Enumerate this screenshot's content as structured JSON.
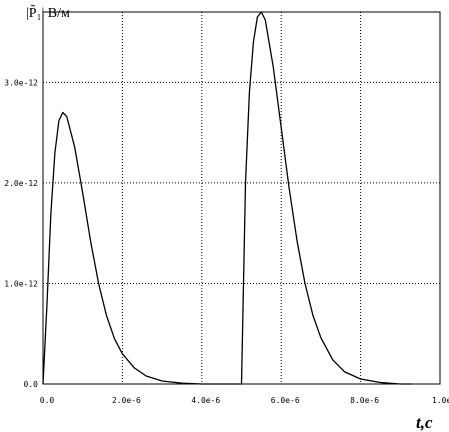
{
  "chart_data": {
    "type": "line",
    "ylabel": "|P̃₁| В/м",
    "xlabel": "t,c",
    "xlim": [
      0,
      1e-05
    ],
    "ylim": [
      0,
      3.7e-12
    ],
    "grid": true,
    "x_ticks": [
      {
        "value": 0,
        "label": "0.0"
      },
      {
        "value": 2e-06,
        "label": "2.0e-6"
      },
      {
        "value": 4e-06,
        "label": "4.0e-6"
      },
      {
        "value": 6e-06,
        "label": "6.0e-6"
      },
      {
        "value": 8e-06,
        "label": "8.0e-6"
      },
      {
        "value": 1e-05,
        "label": "1.0e-"
      }
    ],
    "y_ticks": [
      {
        "value": 0,
        "label": "0.0"
      },
      {
        "value": 1e-12,
        "label": "1.0e-12"
      },
      {
        "value": 2e-12,
        "label": "2.0e-12"
      },
      {
        "value": 3e-12,
        "label": "3.0e-12"
      }
    ],
    "series": [
      {
        "color": "#000000",
        "points": [
          [
            0.0,
            0.0
          ],
          [
            1e-07,
            8e-13
          ],
          [
            2e-07,
            1.7e-12
          ],
          [
            3e-07,
            2.3e-12
          ],
          [
            4e-07,
            2.62e-12
          ],
          [
            5e-07,
            2.7e-12
          ],
          [
            6e-07,
            2.66e-12
          ],
          [
            8e-07,
            2.35e-12
          ],
          [
            1e-06,
            1.9e-12
          ],
          [
            1.2e-06,
            1.42e-12
          ],
          [
            1.4e-06,
            1e-12
          ],
          [
            1.6e-06,
            6.8e-13
          ],
          [
            1.8e-06,
            4.5e-13
          ],
          [
            2e-06,
            3e-13
          ],
          [
            2.3e-06,
            1.6e-13
          ],
          [
            2.6e-06,
            8e-14
          ],
          [
            3e-06,
            3e-14
          ],
          [
            3.5e-06,
            8e-15
          ],
          [
            4e-06,
            0.0
          ],
          [
            5e-06,
            0.0
          ],
          [
            5.05e-06,
            1e-12
          ],
          [
            5.1e-06,
            2e-12
          ],
          [
            5.2e-06,
            2.9e-12
          ],
          [
            5.3e-06,
            3.4e-12
          ],
          [
            5.4e-06,
            3.65e-12
          ],
          [
            5.5e-06,
            3.7e-12
          ],
          [
            5.6e-06,
            3.62e-12
          ],
          [
            5.8e-06,
            3.15e-12
          ],
          [
            6e-06,
            2.55e-12
          ],
          [
            6.2e-06,
            1.95e-12
          ],
          [
            6.4e-06,
            1.42e-12
          ],
          [
            6.6e-06,
            1e-12
          ],
          [
            6.8e-06,
            6.8e-13
          ],
          [
            7e-06,
            4.6e-13
          ],
          [
            7.3e-06,
            2.4e-13
          ],
          [
            7.6e-06,
            1.2e-13
          ],
          [
            8e-06,
            5e-14
          ],
          [
            8.5e-06,
            1.5e-14
          ],
          [
            9e-06,
            0.0
          ],
          [
            9.3e-06,
            0.0
          ]
        ]
      }
    ]
  }
}
